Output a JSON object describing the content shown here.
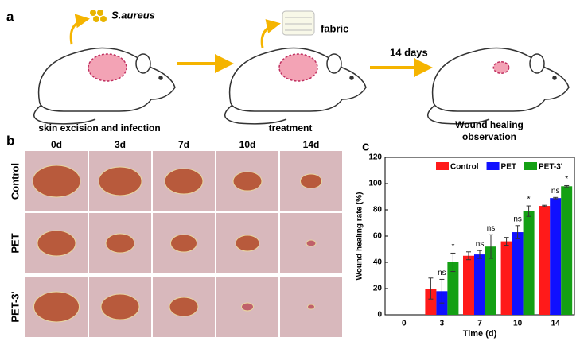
{
  "panel_a": {
    "label": "a",
    "bacteria": "S.aureus",
    "material": "fabric",
    "interval": "14 days",
    "steps": [
      "skin excision and infection",
      "treatment"
    ],
    "final_step": [
      "Wound healing",
      "observation"
    ]
  },
  "panel_b": {
    "label": "b",
    "days": [
      "0d",
      "3d",
      "7d",
      "10d",
      "14d"
    ],
    "groups": [
      "Control",
      "PET",
      "PET-3'"
    ]
  },
  "chart_data": {
    "type": "bar",
    "panel_label": "c",
    "x_label": "Time (d)",
    "y_label": "Wound healing rate (%)",
    "categories": [
      "0",
      "3",
      "7",
      "10",
      "14"
    ],
    "series": [
      {
        "name": "Control",
        "color": "#ff1a1a",
        "values": [
          null,
          20,
          45,
          56,
          83
        ],
        "errors": [
          null,
          8,
          3,
          3,
          0.5
        ],
        "sig_labels": [
          null,
          null,
          null,
          null,
          null
        ]
      },
      {
        "name": "PET",
        "color": "#1010ff",
        "values": [
          null,
          18,
          46,
          63,
          89
        ],
        "errors": [
          null,
          9,
          3,
          5,
          0.5
        ],
        "sig_labels": [
          null,
          "ns",
          "ns",
          "ns",
          "ns"
        ]
      },
      {
        "name": "PET-3'",
        "color": "#14a014",
        "values": [
          null,
          40,
          52,
          79,
          98
        ],
        "errors": [
          null,
          7,
          9,
          4,
          0.5
        ],
        "sig_labels": [
          null,
          "*",
          "ns",
          "*",
          "*"
        ]
      }
    ],
    "ylim": [
      0,
      120
    ],
    "yticks": [
      0,
      20,
      40,
      60,
      80,
      100,
      120
    ],
    "legend": "top-right"
  }
}
